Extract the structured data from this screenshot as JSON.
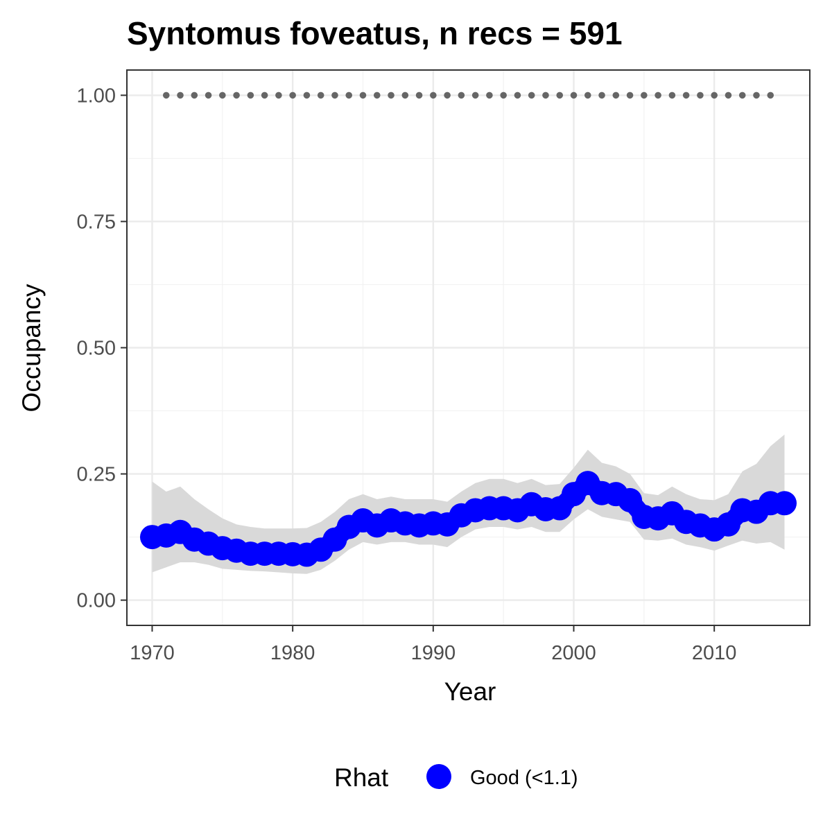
{
  "chart_data": {
    "type": "line",
    "title": "Syntomus foveatus, n recs = 591",
    "xlabel": "Year",
    "ylabel": "Occupancy",
    "xlim": [
      1968.2,
      2016.8
    ],
    "ylim": [
      -0.05,
      1.05
    ],
    "x_ticks": [
      1970,
      1980,
      1990,
      2000,
      2010
    ],
    "x_tick_labels": [
      "1970",
      "1980",
      "1990",
      "2000",
      "2010"
    ],
    "y_ticks": [
      0,
      0.25,
      0.5,
      0.75,
      1.0
    ],
    "y_tick_labels": [
      "0.00",
      "0.25",
      "0.50",
      "0.75",
      "1.00"
    ],
    "grid": true,
    "legend": {
      "title": "Rhat",
      "position": "bottom",
      "entries": [
        {
          "label": "Good (<1.1)",
          "color": "#0000ff"
        }
      ]
    },
    "x": [
      1970,
      1971,
      1972,
      1973,
      1974,
      1975,
      1976,
      1977,
      1978,
      1979,
      1980,
      1981,
      1982,
      1983,
      1984,
      1985,
      1986,
      1987,
      1988,
      1989,
      1990,
      1991,
      1992,
      1993,
      1994,
      1995,
      1996,
      1997,
      1998,
      1999,
      2000,
      2001,
      2002,
      2003,
      2004,
      2005,
      2006,
      2007,
      2008,
      2009,
      2010,
      2011,
      2012,
      2013,
      2014,
      2015
    ],
    "series": [
      {
        "name": "Good (<1.1)",
        "color": "#0000ff",
        "values": [
          0.125,
          0.128,
          0.135,
          0.12,
          0.112,
          0.103,
          0.098,
          0.092,
          0.092,
          0.092,
          0.091,
          0.09,
          0.1,
          0.12,
          0.145,
          0.158,
          0.148,
          0.158,
          0.152,
          0.148,
          0.152,
          0.15,
          0.168,
          0.178,
          0.182,
          0.182,
          0.178,
          0.19,
          0.18,
          0.182,
          0.21,
          0.232,
          0.212,
          0.21,
          0.198,
          0.165,
          0.162,
          0.172,
          0.155,
          0.148,
          0.14,
          0.15,
          0.178,
          0.175,
          0.192,
          0.192
        ],
        "lower": [
          0.055,
          0.065,
          0.075,
          0.075,
          0.07,
          0.062,
          0.06,
          0.058,
          0.057,
          0.055,
          0.053,
          0.052,
          0.06,
          0.078,
          0.1,
          0.115,
          0.11,
          0.115,
          0.115,
          0.11,
          0.11,
          0.105,
          0.125,
          0.14,
          0.145,
          0.145,
          0.14,
          0.145,
          0.135,
          0.135,
          0.16,
          0.18,
          0.165,
          0.16,
          0.155,
          0.12,
          0.118,
          0.122,
          0.11,
          0.105,
          0.098,
          0.108,
          0.118,
          0.112,
          0.115,
          0.1
        ],
        "upper": [
          0.235,
          0.215,
          0.225,
          0.2,
          0.18,
          0.162,
          0.15,
          0.145,
          0.142,
          0.142,
          0.142,
          0.143,
          0.155,
          0.175,
          0.2,
          0.21,
          0.2,
          0.205,
          0.2,
          0.2,
          0.2,
          0.195,
          0.215,
          0.232,
          0.24,
          0.24,
          0.232,
          0.24,
          0.228,
          0.23,
          0.262,
          0.298,
          0.272,
          0.265,
          0.25,
          0.212,
          0.208,
          0.225,
          0.21,
          0.2,
          0.198,
          0.21,
          0.255,
          0.27,
          0.305,
          0.328
        ]
      }
    ],
    "reference_points": {
      "color": "#666666",
      "y": 1.0,
      "x": [
        1971,
        1972,
        1973,
        1974,
        1975,
        1976,
        1977,
        1978,
        1979,
        1980,
        1981,
        1982,
        1983,
        1984,
        1985,
        1986,
        1987,
        1988,
        1989,
        1990,
        1991,
        1992,
        1993,
        1994,
        1995,
        1996,
        1997,
        1998,
        1999,
        2000,
        2001,
        2002,
        2003,
        2004,
        2005,
        2006,
        2007,
        2008,
        2009,
        2010,
        2011,
        2012,
        2013,
        2014
      ]
    },
    "band_color": "#d9d9d9"
  }
}
